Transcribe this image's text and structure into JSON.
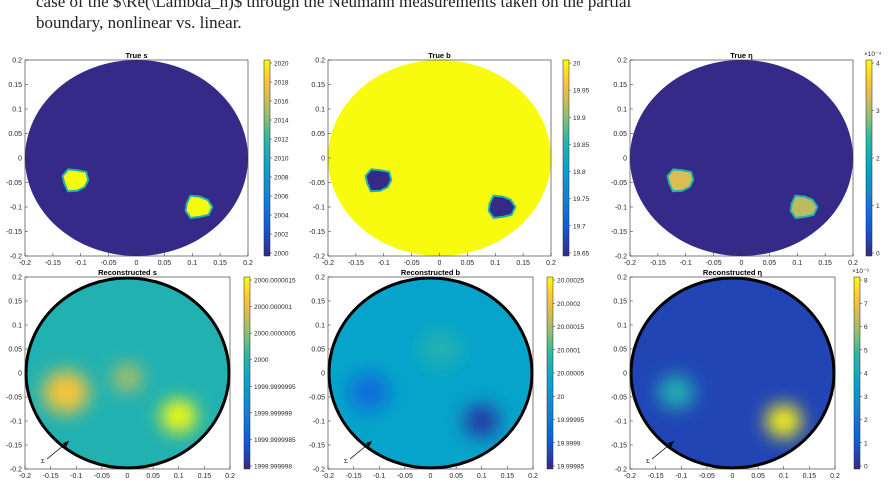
{
  "caption": {
    "line1": "case of the $\\Re(\\Lambda_h)$ through the Neumann measurements taken on the partial",
    "line2": "boundary, nonlinear vs. linear."
  },
  "colors": {
    "low": "#352a87",
    "mid": "#1fb2b2",
    "high": "#f9fb0e",
    "boundary": "#000000",
    "axes": "#262626"
  },
  "panels": [
    {
      "id": "true-s",
      "title": "True s",
      "type": "piecewise",
      "bg": 0.0,
      "inc": 1.0,
      "inc2": 1.0,
      "ring": false,
      "cb_ticks": [
        "2020",
        "2018",
        "2016",
        "2014",
        "2012",
        "2010",
        "2008",
        "2006",
        "2004",
        "2002",
        "2000"
      ],
      "cb_exp": "",
      "y_ticks": [
        "0.2",
        "0.15",
        "0.1",
        "0.05",
        "0",
        "-0.05",
        "-0.1",
        "-0.15",
        "-0.2"
      ],
      "x_ticks": [
        "-0.2",
        "-0.15",
        "-0.1",
        "-0.05",
        "0",
        "0.05",
        "0.1",
        "0.15",
        "0.2"
      ],
      "marker": ""
    },
    {
      "id": "true-b",
      "title": "True b",
      "type": "piecewise",
      "bg": 1.0,
      "inc": 0.0,
      "inc2": 0.0,
      "ring": false,
      "cb_ticks": [
        "20",
        "19.95",
        "19.9",
        "19.85",
        "19.8",
        "19.75",
        "19.7",
        "19.65"
      ],
      "cb_exp": "",
      "y_ticks": [
        "0.2",
        "0.15",
        "0.1",
        "0.05",
        "0",
        "-0.05",
        "-0.1",
        "-0.15",
        "-0.2"
      ],
      "x_ticks": [
        "-0.2",
        "-0.15",
        "-0.1",
        "-0.05",
        "0",
        "0.05",
        "0.1",
        "0.15",
        "0.2"
      ],
      "marker": ""
    },
    {
      "id": "true-eta",
      "title": "True η",
      "type": "piecewise",
      "bg": 0.0,
      "inc": 0.82,
      "inc2": 0.77,
      "ring": false,
      "cb_ticks": [
        "4",
        "3",
        "2",
        "1",
        "0"
      ],
      "cb_exp": "×10⁻⁴",
      "y_ticks": [
        "0.2",
        "0.15",
        "0.1",
        "0.05",
        "0",
        "-0.05",
        "-0.1",
        "-0.15",
        "-0.2"
      ],
      "x_ticks": [
        "-0.2",
        "-0.15",
        "-0.1",
        "-0.05",
        "0",
        "0.05",
        "0.1",
        "0.15",
        "0.2"
      ],
      "marker": ""
    },
    {
      "id": "rec-s",
      "title": "Reconstructed s",
      "type": "smooth",
      "bg": 0.55,
      "ring": true,
      "blobs": [
        {
          "cx": -0.12,
          "cy": -0.04,
          "r": 0.045,
          "v": 0.88
        },
        {
          "cx": 0.1,
          "cy": -0.09,
          "r": 0.035,
          "v": 1.0
        },
        {
          "cx": 0.0,
          "cy": -0.01,
          "r": 0.03,
          "v": 0.75
        }
      ],
      "cb_ticks": [
        "2000.0000015",
        "2000.000001",
        "2000.0000005",
        "2000",
        "1999.9999995",
        "1999.999999",
        "1999.9999985",
        "1999.999998"
      ],
      "cb_exp": "",
      "y_ticks": [
        "0.2",
        "0.15",
        "0.1",
        "0.05",
        "0",
        "-0.05",
        "-0.1",
        "-0.15",
        "-0.2"
      ],
      "x_ticks": [
        "-0.2",
        "-0.15",
        "-0.1",
        "-0.05",
        "0",
        "0.05",
        "0.1",
        "0.15",
        "0.2"
      ],
      "marker": "Σ"
    },
    {
      "id": "rec-b",
      "title": "Reconstructed b",
      "type": "smooth",
      "bg": 0.45,
      "ring": true,
      "blobs": [
        {
          "cx": -0.12,
          "cy": -0.04,
          "r": 0.04,
          "v": 0.22
        },
        {
          "cx": 0.1,
          "cy": -0.1,
          "r": 0.035,
          "v": 0.05
        },
        {
          "cx": 0.02,
          "cy": 0.05,
          "r": 0.04,
          "v": 0.55
        }
      ],
      "cb_ticks": [
        "20.00025",
        "20.0002",
        "20.00015",
        "20.0001",
        "20.00005",
        "20",
        "19.99995",
        "19.9999",
        "19.99985"
      ],
      "cb_exp": "",
      "y_ticks": [
        "0.2",
        "0.15",
        "0.1",
        "0.05",
        "0",
        "-0.05",
        "-0.1",
        "-0.15",
        "-0.2"
      ],
      "x_ticks": [
        "-0.2",
        "-0.15",
        "-0.1",
        "-0.05",
        "0",
        "0.05",
        "0.1",
        "0.15",
        "0.2"
      ],
      "marker": "Σ"
    },
    {
      "id": "rec-eta",
      "title": "Reconstructed η",
      "type": "smooth",
      "bg": 0.08,
      "ring": true,
      "blobs": [
        {
          "cx": -0.11,
          "cy": -0.04,
          "r": 0.035,
          "v": 0.55
        },
        {
          "cx": 0.1,
          "cy": -0.1,
          "r": 0.035,
          "v": 0.98
        }
      ],
      "cb_ticks": [
        "8",
        "7",
        "6",
        "5",
        "4",
        "3",
        "2",
        "1",
        "0"
      ],
      "cb_exp": "×10⁻³",
      "y_ticks": [
        "0.2",
        "0.15",
        "0.1",
        "0.05",
        "0",
        "-0.05",
        "-0.1",
        "-0.15",
        "-0.2"
      ],
      "x_ticks": [
        "-0.2",
        "-0.15",
        "-0.1",
        "-0.05",
        "0",
        "0.05",
        "0.1",
        "0.15",
        "0.2"
      ],
      "marker": "Σ"
    }
  ]
}
